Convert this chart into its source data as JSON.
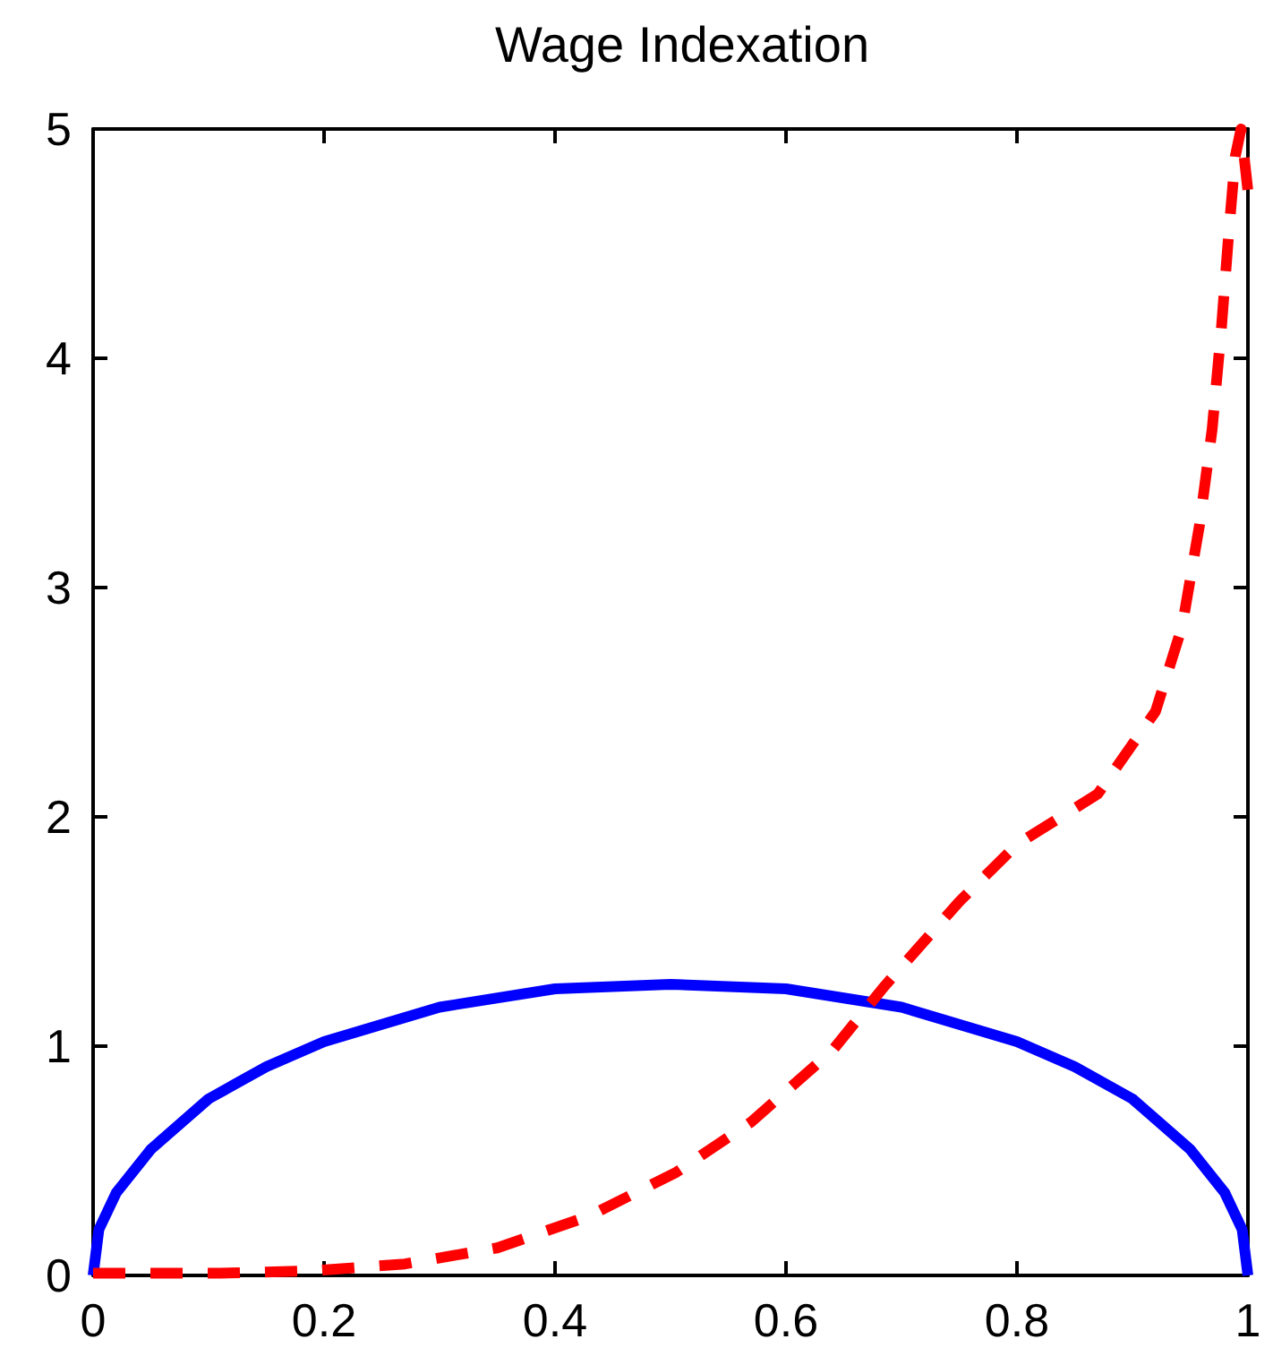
{
  "chart_data": {
    "type": "line",
    "title": "Wage Indexation",
    "xlim": [
      0,
      1
    ],
    "xticks": [
      0,
      0.2,
      0.4,
      0.6,
      0.8,
      1
    ],
    "ylim": [
      0,
      5
    ],
    "yticks": [
      0,
      1,
      2,
      3,
      4,
      5
    ],
    "marker": "none",
    "series": [
      {
        "color": "#0000ff",
        "line_style": "solid",
        "x": [
          0,
          0.005,
          0.02,
          0.05,
          0.1,
          0.15,
          0.2,
          0.3,
          0.4,
          0.5,
          0.6,
          0.7,
          0.8,
          0.85,
          0.9,
          0.95,
          0.98,
          0.995,
          1
        ],
        "values": [
          0,
          0.2,
          0.36,
          0.55,
          0.77,
          0.91,
          1.02,
          1.17,
          1.25,
          1.27,
          1.25,
          1.17,
          1.02,
          0.91,
          0.77,
          0.55,
          0.36,
          0.2,
          0
        ]
      },
      {
        "color": "#ff0000",
        "line_style": "dashed",
        "x": [
          0,
          0.11,
          0.19,
          0.27,
          0.35,
          0.43,
          0.505,
          0.57,
          0.64,
          0.685,
          0.75,
          0.8,
          0.87,
          0.92,
          0.943,
          0.958,
          0.969,
          0.977,
          0.983,
          0.989,
          0.994,
          1
        ],
        "values": [
          0.01,
          0.01,
          0.02,
          0.05,
          0.12,
          0.26,
          0.45,
          0.67,
          0.98,
          1.26,
          1.63,
          1.88,
          2.1,
          2.46,
          2.83,
          3.27,
          3.69,
          4.13,
          4.52,
          4.88,
          5,
          4.73
        ]
      }
    ]
  }
}
